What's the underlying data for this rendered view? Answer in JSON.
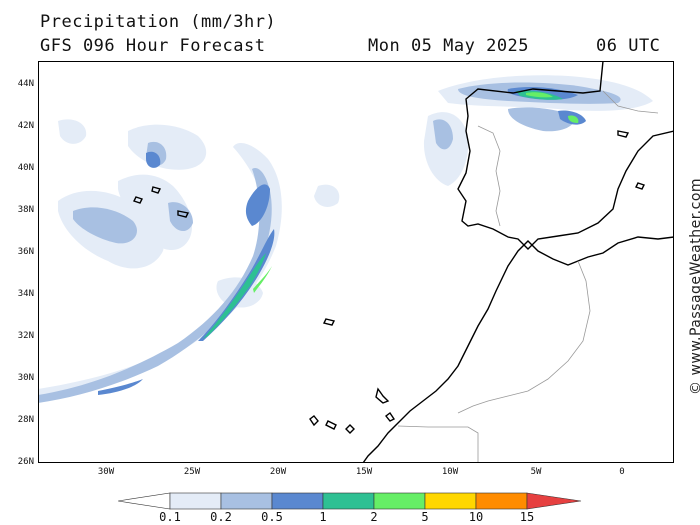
{
  "header": {
    "title": "Precipitation (mm/3hr)",
    "subtitle": "GFS 096 Hour Forecast",
    "date": "Mon 05 May 2025",
    "time": "06 UTC"
  },
  "credit": "© www.PassageWeather.com",
  "axes": {
    "lat_labels": [
      "44N",
      "42N",
      "40N",
      "38N",
      "36N",
      "34N",
      "32N",
      "30N",
      "28N",
      "26N"
    ],
    "lon_labels": [
      "30W",
      "25W",
      "20W",
      "15W",
      "10W",
      "5W",
      "0"
    ]
  },
  "legend": {
    "labels": [
      "0.1",
      "0.2",
      "0.5",
      "1",
      "2",
      "5",
      "10",
      "15"
    ],
    "colors": [
      "#ffffff",
      "#e4ecf7",
      "#a8c0e2",
      "#5a88d0",
      "#2ec093",
      "#66ee66",
      "#ffd700",
      "#ff8c00",
      "#e64040"
    ]
  },
  "colors": {
    "very_light": "#e4ecf7",
    "light": "#a8c0e2",
    "medium": "#5a88d0",
    "teal": "#2ec093",
    "green": "#66ee66",
    "coast": "#000000",
    "border": "#999999"
  }
}
